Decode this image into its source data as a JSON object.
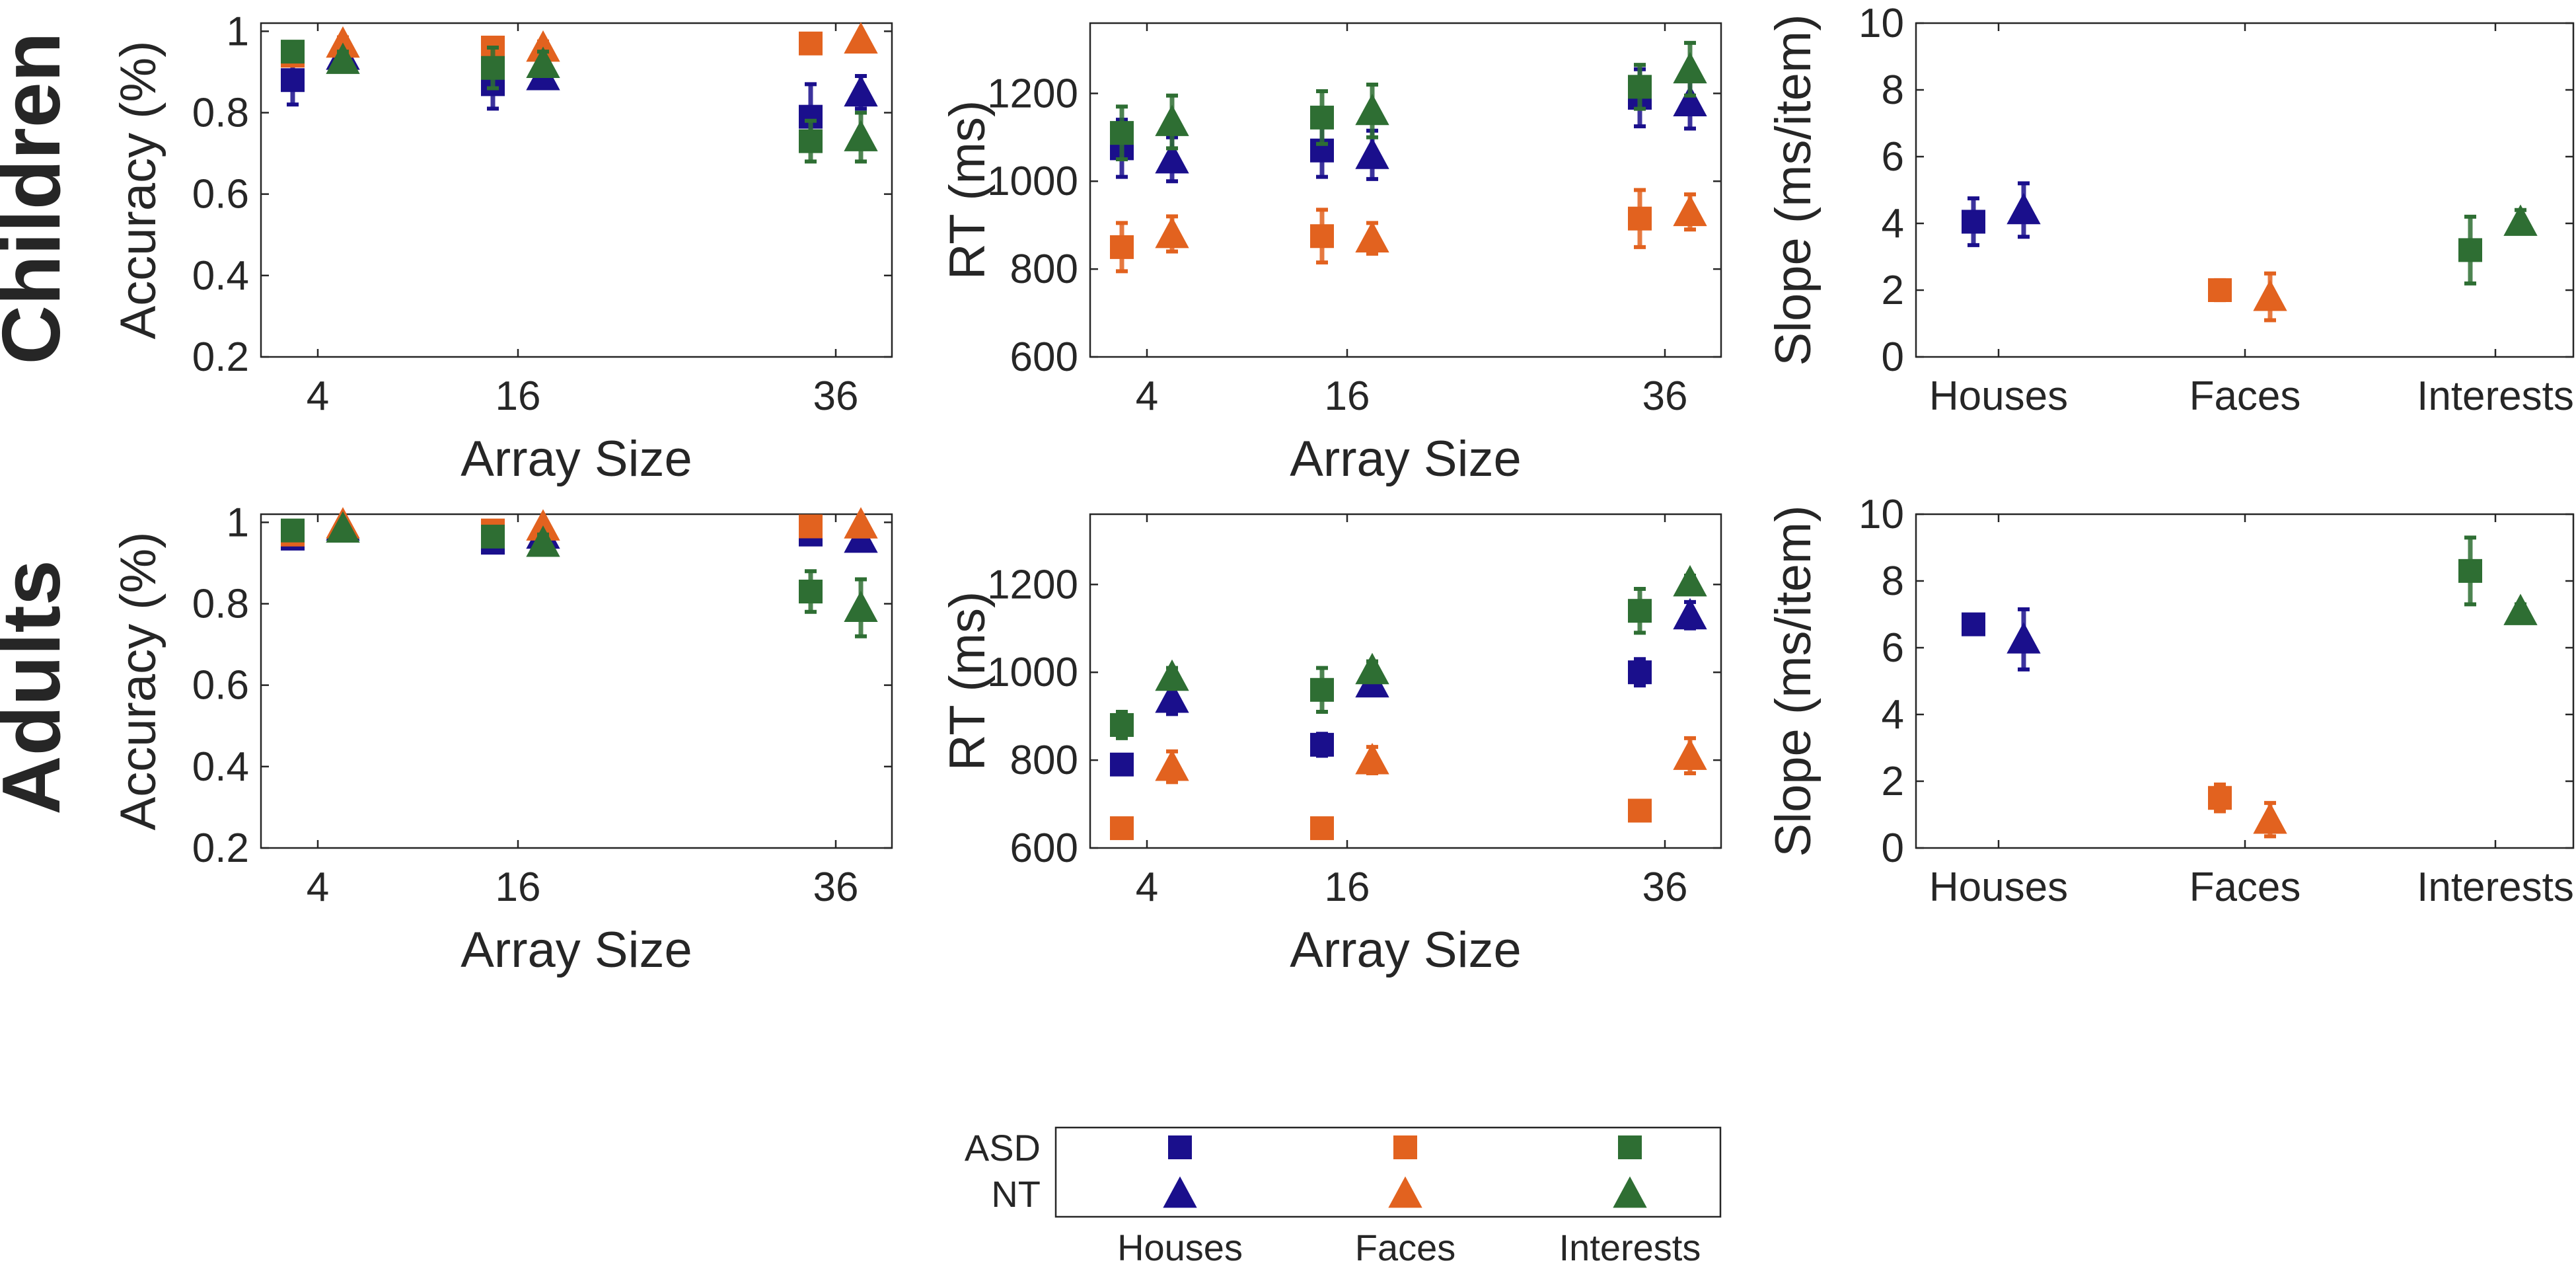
{
  "row_labels": {
    "children": "Children",
    "adults": "Adults"
  },
  "colors": {
    "houses": "#1a0f8c",
    "faces": "#e2621f",
    "interests": "#2e6e33"
  },
  "chart_data": [
    {
      "id": "children-accuracy",
      "type": "scatter",
      "row": "Children",
      "ylabel": "Accuracy (%)",
      "xlabel": "Array Size",
      "categories": [
        "4",
        "16",
        "36"
      ],
      "ylim": [
        0.2,
        1.02
      ],
      "yticks": [
        0.2,
        0.4,
        0.6,
        0.8,
        1
      ],
      "ytick_labels": [
        "0.2",
        "0.4",
        "0.6",
        "0.8",
        "1"
      ],
      "series": [
        {
          "name": "Houses ASD",
          "group": "ASD",
          "stimulus": "houses",
          "values": [
            0.88,
            0.87,
            0.79
          ],
          "err": [
            0.06,
            0.06,
            0.08
          ]
        },
        {
          "name": "Faces ASD",
          "group": "ASD",
          "stimulus": "faces",
          "values": [
            0.94,
            0.96,
            0.97
          ],
          "err": [
            0.02,
            0.015,
            0.015
          ]
        },
        {
          "name": "Interests ASD",
          "group": "ASD",
          "stimulus": "interests",
          "values": [
            0.95,
            0.91,
            0.73
          ],
          "err": [
            0.02,
            0.05,
            0.05
          ]
        },
        {
          "name": "Houses NT",
          "group": "NT",
          "stimulus": "houses",
          "values": [
            0.94,
            0.89,
            0.85
          ],
          "err": [
            0.02,
            0.02,
            0.04
          ]
        },
        {
          "name": "Faces NT",
          "group": "NT",
          "stimulus": "faces",
          "values": [
            0.97,
            0.96,
            0.98
          ],
          "err": [
            0.015,
            0.015,
            0.01
          ]
        },
        {
          "name": "Interests NT",
          "group": "NT",
          "stimulus": "interests",
          "values": [
            0.93,
            0.92,
            0.74
          ],
          "err": [
            0.02,
            0.03,
            0.06
          ]
        }
      ]
    },
    {
      "id": "children-rt",
      "type": "scatter",
      "row": "Children",
      "ylabel": "RT (ms)",
      "xlabel": "Array Size",
      "categories": [
        "4",
        "16",
        "36"
      ],
      "ylim": [
        600,
        1360
      ],
      "yticks": [
        600,
        800,
        1000,
        1200
      ],
      "ytick_labels": [
        "600",
        "800",
        "1000",
        "1200"
      ],
      "series": [
        {
          "name": "Houses ASD",
          "group": "ASD",
          "stimulus": "houses",
          "values": [
            1075,
            1070,
            1190
          ],
          "err": [
            65,
            60,
            65
          ]
        },
        {
          "name": "Faces ASD",
          "group": "ASD",
          "stimulus": "faces",
          "values": [
            850,
            875,
            915
          ],
          "err": [
            55,
            60,
            65
          ]
        },
        {
          "name": "Interests ASD",
          "group": "ASD",
          "stimulus": "interests",
          "values": [
            1110,
            1145,
            1215
          ],
          "err": [
            60,
            60,
            50
          ]
        },
        {
          "name": "Houses NT",
          "group": "NT",
          "stimulus": "houses",
          "values": [
            1050,
            1060,
            1180
          ],
          "err": [
            50,
            55,
            60
          ]
        },
        {
          "name": "Faces NT",
          "group": "NT",
          "stimulus": "faces",
          "values": [
            880,
            870,
            930
          ],
          "err": [
            40,
            35,
            40
          ]
        },
        {
          "name": "Interests NT",
          "group": "NT",
          "stimulus": "interests",
          "values": [
            1135,
            1160,
            1255
          ],
          "err": [
            60,
            60,
            60
          ]
        }
      ]
    },
    {
      "id": "children-slope",
      "type": "scatter",
      "row": "Children",
      "ylabel": "Slope (ms/item)",
      "xlabel": "",
      "categories": [
        "Houses",
        "Faces",
        "Interests"
      ],
      "ylim": [
        0,
        10
      ],
      "yticks": [
        0,
        2,
        4,
        6,
        8,
        10
      ],
      "ytick_labels": [
        "0",
        "2",
        "4",
        "6",
        "8",
        "10"
      ],
      "series": [
        {
          "name": "ASD",
          "group": "ASD",
          "stimuli": [
            "houses",
            "faces",
            "interests"
          ],
          "values": [
            4.05,
            2.0,
            3.2
          ],
          "err": [
            0.7,
            0.3,
            1.0
          ]
        },
        {
          "name": "NT",
          "group": "NT",
          "stimuli": [
            "houses",
            "faces",
            "interests"
          ],
          "values": [
            4.4,
            1.8,
            4.05
          ],
          "err": [
            0.8,
            0.7,
            0.35
          ]
        }
      ]
    },
    {
      "id": "adults-accuracy",
      "type": "scatter",
      "row": "Adults",
      "ylabel": "Accuracy (%)",
      "xlabel": "Array Size",
      "categories": [
        "4",
        "16",
        "36"
      ],
      "ylim": [
        0.2,
        1.02
      ],
      "yticks": [
        0.2,
        0.4,
        0.6,
        0.8,
        1
      ],
      "ytick_labels": [
        "0.2",
        "0.4",
        "0.6",
        "0.8",
        "1"
      ],
      "series": [
        {
          "name": "Houses ASD",
          "group": "ASD",
          "stimulus": "houses",
          "values": [
            0.96,
            0.95,
            0.97
          ],
          "err": [
            0.01,
            0.01,
            0.01
          ]
        },
        {
          "name": "Faces ASD",
          "group": "ASD",
          "stimulus": "faces",
          "values": [
            0.97,
            0.98,
            0.99
          ],
          "err": [
            0.01,
            0.01,
            0.01
          ]
        },
        {
          "name": "Interests ASD",
          "group": "ASD",
          "stimulus": "interests",
          "values": [
            0.98,
            0.965,
            0.83
          ],
          "err": [
            0.01,
            0.02,
            0.05
          ]
        },
        {
          "name": "Houses NT",
          "group": "NT",
          "stimulus": "houses",
          "values": [
            0.99,
            0.97,
            0.96
          ],
          "err": [
            0.01,
            0.01,
            0.01
          ]
        },
        {
          "name": "Faces NT",
          "group": "NT",
          "stimulus": "faces",
          "values": [
            0.995,
            0.99,
            0.995
          ],
          "err": [
            0.005,
            0.005,
            0.005
          ]
        },
        {
          "name": "Interests NT",
          "group": "NT",
          "stimulus": "interests",
          "values": [
            0.985,
            0.95,
            0.79
          ],
          "err": [
            0.01,
            0.02,
            0.07
          ]
        }
      ]
    },
    {
      "id": "adults-rt",
      "type": "scatter",
      "row": "Adults",
      "ylabel": "RT (ms)",
      "xlabel": "Array Size",
      "categories": [
        "4",
        "16",
        "36"
      ],
      "ylim": [
        600,
        1360
      ],
      "yticks": [
        600,
        800,
        1000,
        1200
      ],
      "ytick_labels": [
        "600",
        "800",
        "1000",
        "1200"
      ],
      "series": [
        {
          "name": "Houses ASD",
          "group": "ASD",
          "stimulus": "houses",
          "values": [
            790,
            835,
            1000
          ],
          "err": [
            20,
            25,
            30
          ]
        },
        {
          "name": "Faces ASD",
          "group": "ASD",
          "stimulus": "faces",
          "values": [
            645,
            645,
            685
          ],
          "err": [
            15,
            15,
            20
          ]
        },
        {
          "name": "Interests ASD",
          "group": "ASD",
          "stimulus": "interests",
          "values": [
            880,
            960,
            1140
          ],
          "err": [
            30,
            50,
            50
          ]
        },
        {
          "name": "Houses NT",
          "group": "NT",
          "stimulus": "houses",
          "values": [
            940,
            975,
            1130
          ],
          "err": [
            35,
            25,
            30
          ]
        },
        {
          "name": "Faces NT",
          "group": "NT",
          "stimulus": "faces",
          "values": [
            785,
            800,
            810
          ],
          "err": [
            35,
            30,
            40
          ]
        },
        {
          "name": "Interests NT",
          "group": "NT",
          "stimulus": "interests",
          "values": [
            990,
            1005,
            1205
          ],
          "err": [
            20,
            20,
            15
          ]
        }
      ]
    },
    {
      "id": "adults-slope",
      "type": "scatter",
      "row": "Adults",
      "ylabel": "Slope (ms/item)",
      "xlabel": "",
      "categories": [
        "Houses",
        "Faces",
        "Interests"
      ],
      "ylim": [
        0,
        10
      ],
      "yticks": [
        0,
        2,
        4,
        6,
        8,
        10
      ],
      "ytick_labels": [
        "0",
        "2",
        "4",
        "6",
        "8",
        "10"
      ],
      "series": [
        {
          "name": "ASD",
          "group": "ASD",
          "stimuli": [
            "houses",
            "faces",
            "interests"
          ],
          "values": [
            6.7,
            1.5,
            8.3
          ],
          "err": [
            0.25,
            0.4,
            1.0
          ]
        },
        {
          "name": "NT",
          "group": "NT",
          "stimuli": [
            "houses",
            "faces",
            "interests"
          ],
          "values": [
            6.25,
            0.85,
            7.1
          ],
          "err": [
            0.9,
            0.5,
            0.2
          ]
        }
      ]
    }
  ],
  "legend": {
    "rows": [
      {
        "label": "ASD",
        "marker": "square"
      },
      {
        "label": "NT",
        "marker": "triangle"
      }
    ],
    "columns": [
      {
        "label": "Houses",
        "stimulus": "houses"
      },
      {
        "label": "Faces",
        "stimulus": "faces"
      },
      {
        "label": "Interests",
        "stimulus": "interests"
      }
    ]
  }
}
